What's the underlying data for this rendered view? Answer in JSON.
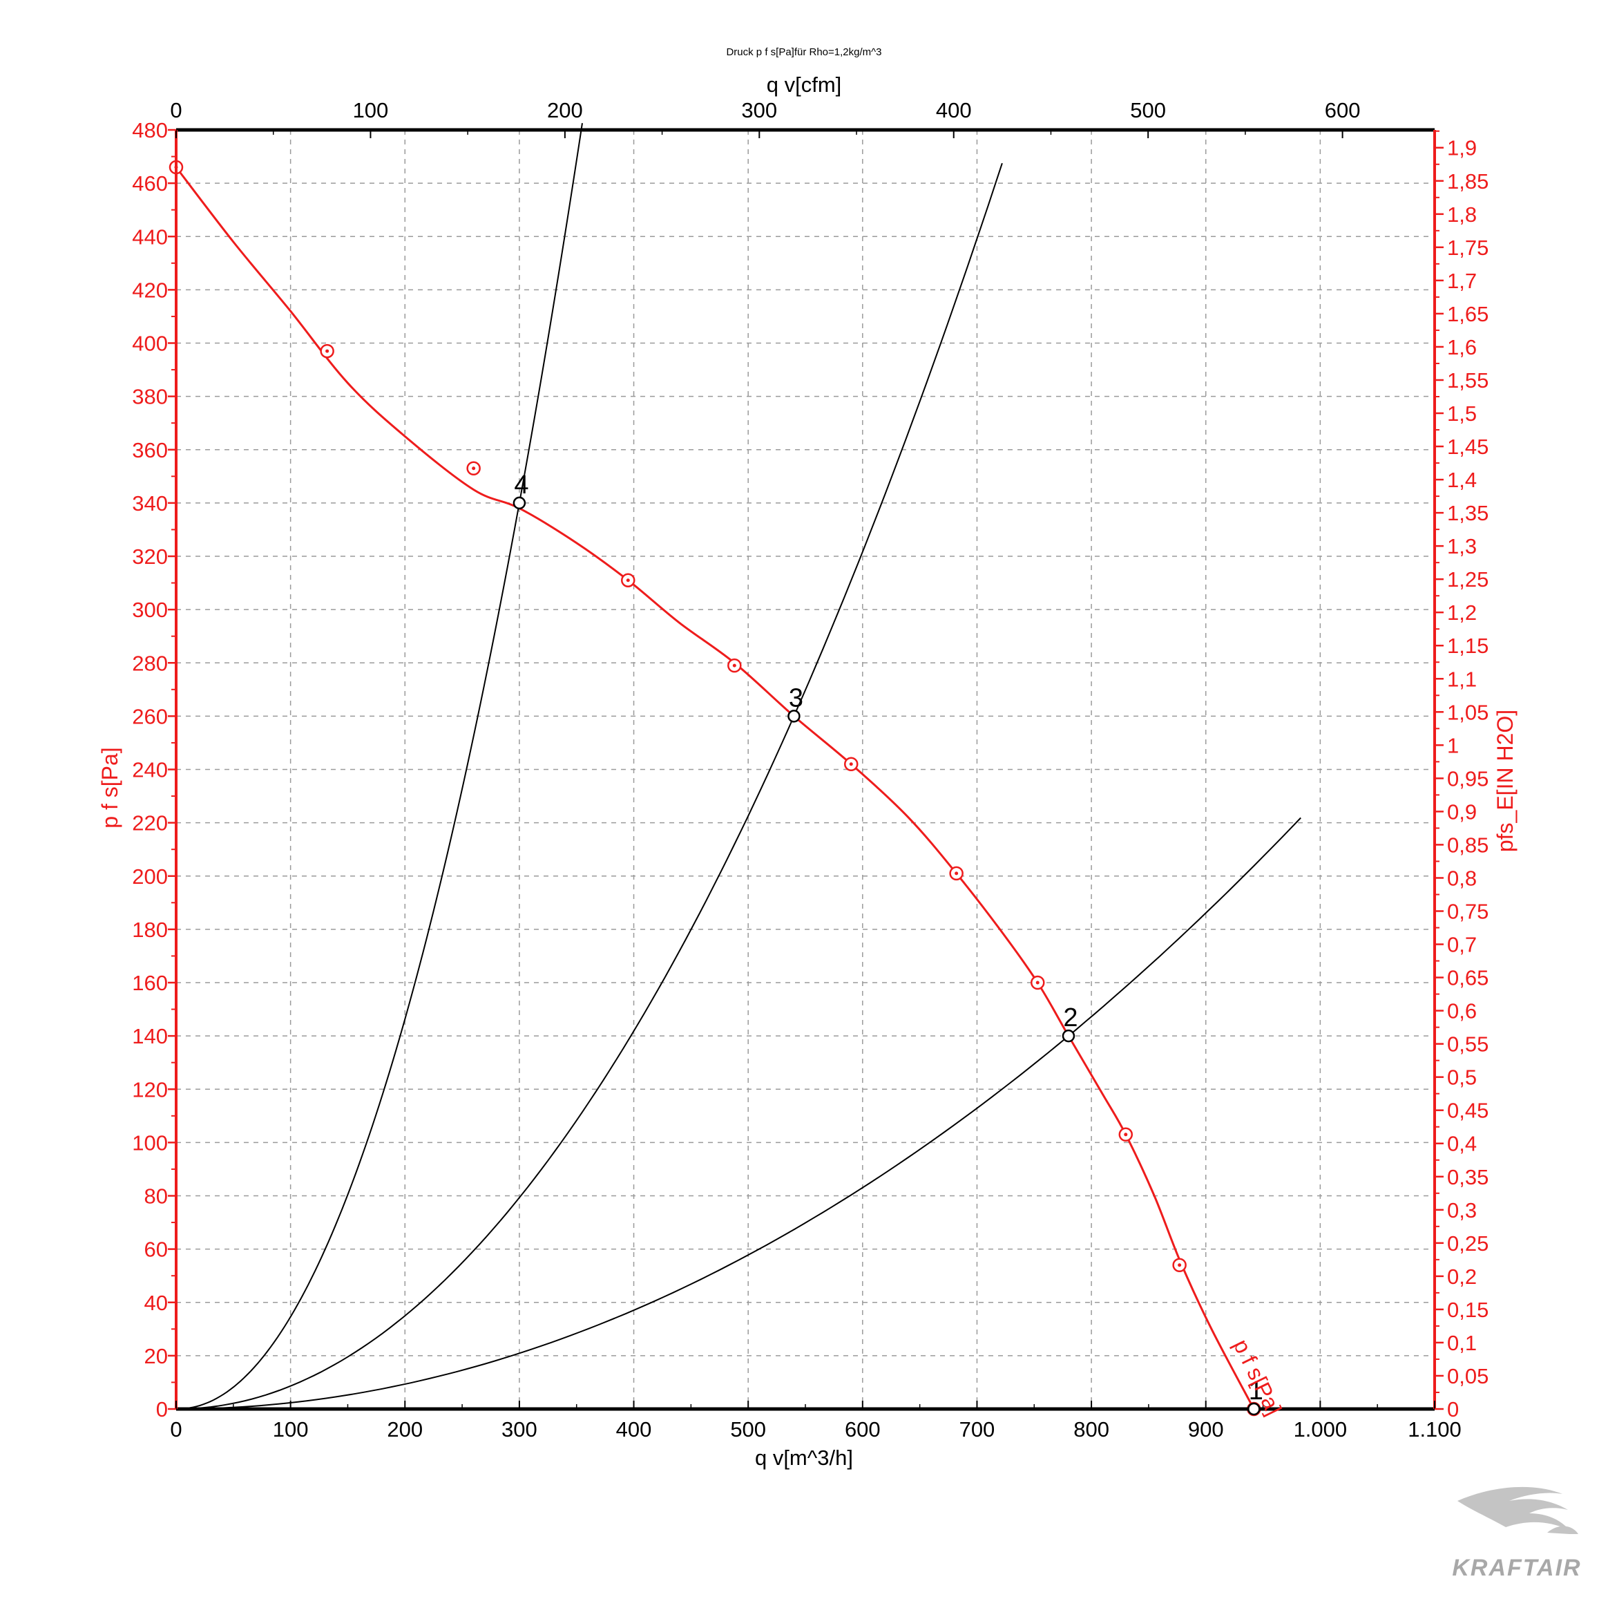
{
  "colors": {
    "accent": "#ee1c1c",
    "axis": "#000000",
    "grid": "#9a9a9a",
    "system_curve": "#000000",
    "logo": "#a8a8a8"
  },
  "logo": {
    "text": "KRAFTAIR"
  },
  "chart_data": {
    "type": "line",
    "title": "Druck p f s[Pa]für Rho=1,2kg/m^3",
    "xlabel": "q v[m^3/h]",
    "x2label": "q v[cfm]",
    "ylabel": "p f s[Pa]",
    "y2label": "pfs_E[IN H2O]",
    "xlim": [
      0,
      1100
    ],
    "ylim": [
      0,
      480
    ],
    "x2lim": [
      0,
      647.4
    ],
    "y2lim": [
      0,
      1.9268
    ],
    "grid": true,
    "x_ticks": [
      "0",
      "100",
      "200",
      "300",
      "400",
      "500",
      "600",
      "700",
      "800",
      "900",
      "1.000",
      "1.100"
    ],
    "x2_ticks": [
      "0",
      "100",
      "200",
      "300",
      "400",
      "500",
      "600"
    ],
    "y_ticks": [
      "0",
      "20",
      "40",
      "60",
      "80",
      "100",
      "120",
      "140",
      "160",
      "180",
      "200",
      "220",
      "240",
      "260",
      "280",
      "300",
      "320",
      "340",
      "360",
      "380",
      "400",
      "420",
      "440",
      "460",
      "480"
    ],
    "y2_ticks": [
      "0",
      "0,05",
      "0,1",
      "0,15",
      "0,2",
      "0,25",
      "0,3",
      "0,35",
      "0,4",
      "0,45",
      "0,5",
      "0,55",
      "0,6",
      "0,65",
      "0,7",
      "0,75",
      "0,8",
      "0,85",
      "0,9",
      "0,95",
      "1",
      "1,05",
      "1,1",
      "1,15",
      "1,2",
      "1,25",
      "1,3",
      "1,35",
      "1,4",
      "1,45",
      "1,5",
      "1,55",
      "1,6",
      "1,65",
      "1,7",
      "1,75",
      "1,8",
      "1,85",
      "1,9"
    ],
    "fan_curve": {
      "name": "p f s[Pa]",
      "x": [
        0,
        50,
        100,
        150,
        200,
        260,
        300,
        350,
        395,
        440,
        488,
        540,
        590,
        640,
        682,
        720,
        753,
        780,
        810,
        830,
        855,
        878,
        905,
        942
      ],
      "y": [
        466,
        438,
        412,
        385,
        365,
        345,
        338,
        325,
        311,
        295,
        280,
        260,
        242,
        222,
        201,
        180,
        160,
        140,
        118,
        103,
        80,
        55,
        30,
        0
      ]
    },
    "markers": {
      "x": [
        0,
        132,
        260,
        395,
        488,
        590,
        682,
        753,
        830,
        877,
        942
      ],
      "y": [
        466,
        397,
        353,
        311,
        279,
        242,
        201,
        160,
        103,
        54,
        0
      ]
    },
    "system_curves": [
      {
        "label": "4",
        "x": [
          0,
          300,
          355
        ],
        "y": [
          0,
          340,
          474
        ],
        "exponent": 2.08
      },
      {
        "label": "3",
        "x": [
          0,
          540,
          722
        ],
        "y": [
          0,
          260,
          468
        ],
        "exponent": 2.02
      },
      {
        "label": "2",
        "x": [
          0,
          780,
          983
        ],
        "y": [
          0,
          140,
          222
        ],
        "exponent": 1.99
      }
    ],
    "operating_points": [
      {
        "label": "1",
        "x": 942,
        "y": 0
      },
      {
        "label": "2",
        "x": 780,
        "y": 140
      },
      {
        "label": "3",
        "x": 540,
        "y": 260
      },
      {
        "label": "4",
        "x": 300,
        "y": 340
      }
    ]
  }
}
